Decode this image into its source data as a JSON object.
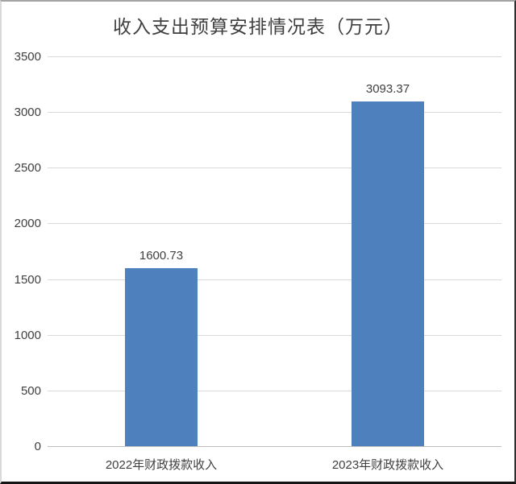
{
  "chart_data": {
    "type": "bar",
    "title": "收入支出预算安排情况表（万元）",
    "categories": [
      "2022年财政拨款收入",
      "2023年财政拨款收入"
    ],
    "values": [
      1600.73,
      3093.37
    ],
    "data_labels": [
      "1600.73",
      "3093.37"
    ],
    "xlabel": "",
    "ylabel": "",
    "ylim": [
      0,
      3500
    ],
    "yticks": [
      0,
      500,
      1000,
      1500,
      2000,
      2500,
      3000,
      3500
    ],
    "grid": true,
    "legend": "none",
    "bar_color": "#4e80bd",
    "gridline_color": "#d9d9d9",
    "axis_line_color": "#bfbfbf",
    "text_color": "#404040"
  }
}
